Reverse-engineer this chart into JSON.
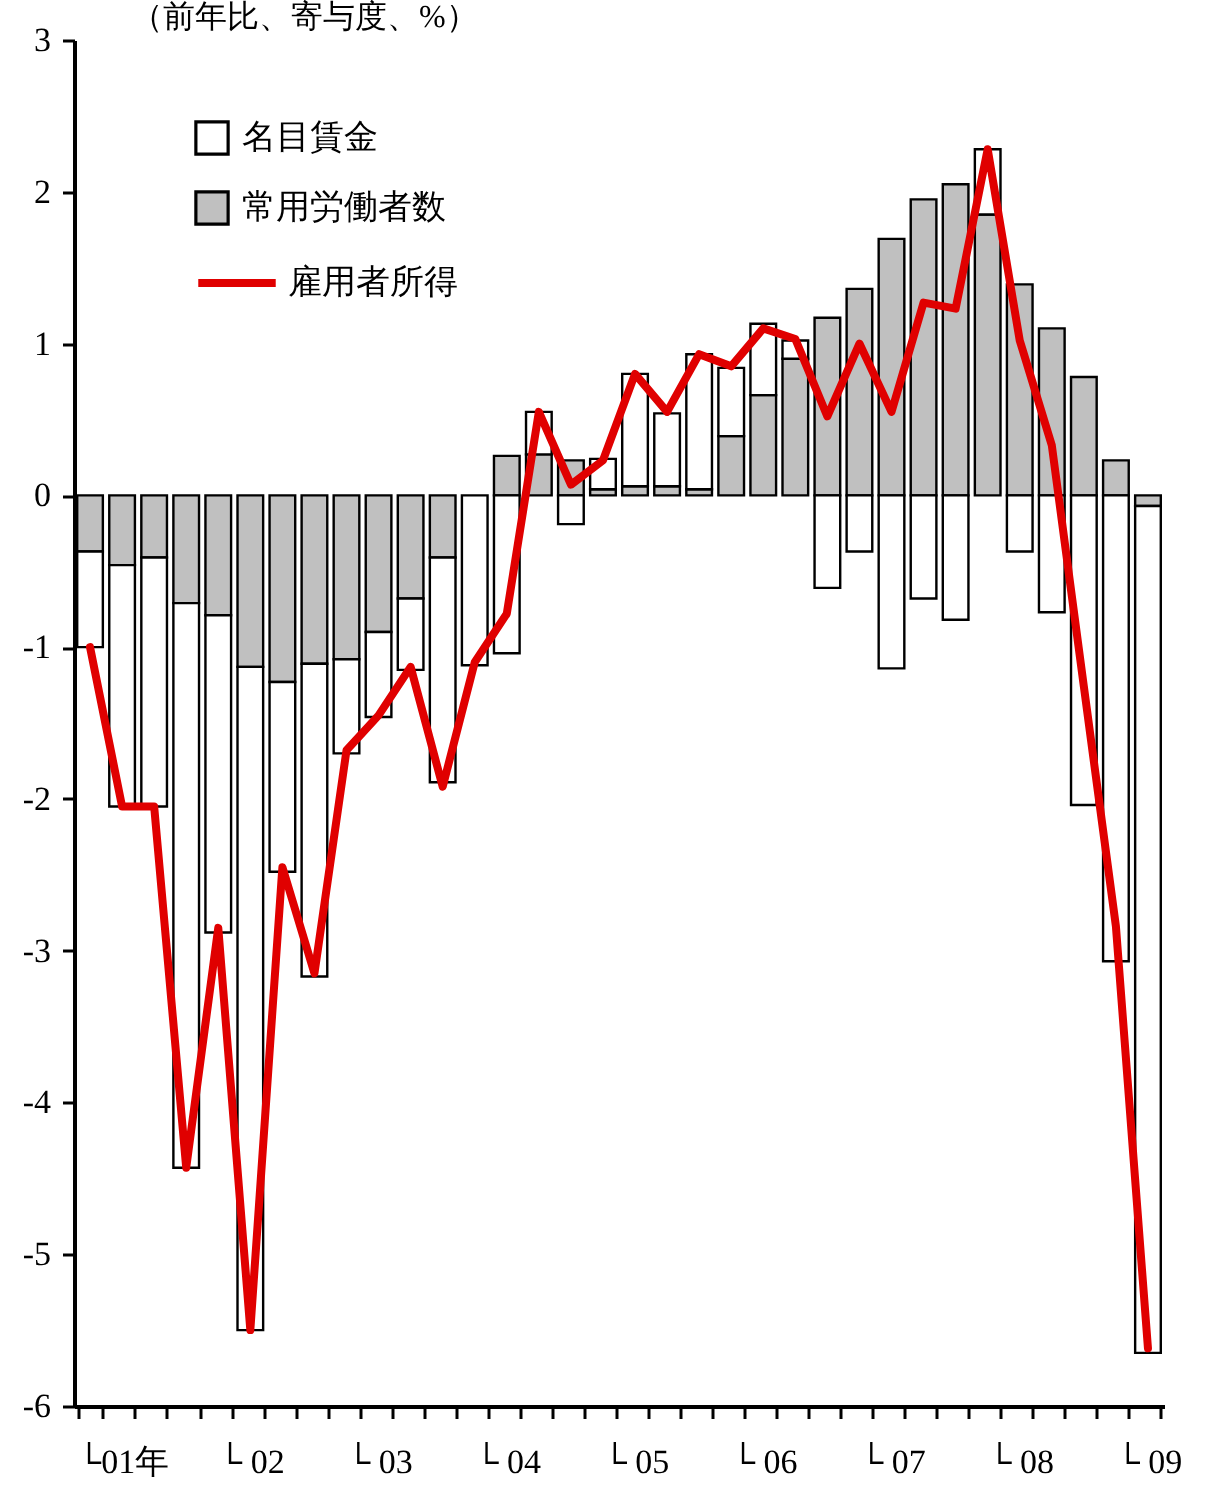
{
  "chart_data": {
    "type": "bar",
    "stacked": true,
    "ylabel": "（前年比、寄与度、%）",
    "categories": [
      null,
      "└01年",
      null,
      null,
      null,
      "└ 02",
      null,
      null,
      null,
      "└ 03",
      null,
      null,
      null,
      "└ 04",
      null,
      null,
      null,
      "└ 05",
      null,
      null,
      null,
      "└ 06",
      null,
      null,
      null,
      "└ 07",
      null,
      null,
      null,
      "└ 08",
      null,
      null,
      null,
      "└ 09"
    ],
    "series": [
      {
        "name": "常用労働者数",
        "color": "#c0c0c0",
        "values": [
          -0.37,
          -0.46,
          -0.41,
          -0.71,
          -0.79,
          -1.13,
          -1.23,
          -1.11,
          -1.08,
          -0.9,
          -0.68,
          -0.41,
          null,
          0.26,
          0.27,
          0.23,
          0.04,
          0.06,
          0.06,
          0.04,
          0.39,
          0.66,
          0.9,
          1.17,
          1.36,
          1.69,
          1.95,
          2.05,
          1.85,
          1.39,
          1.1,
          0.78,
          0.23,
          -0.07
        ]
      },
      {
        "name": "名目賃金",
        "color": "#ffffff",
        "values": [
          -0.63,
          -1.59,
          -1.64,
          -3.72,
          -2.09,
          -4.37,
          -1.25,
          -2.06,
          -0.62,
          -0.56,
          -0.47,
          -1.48,
          -1.12,
          -1.04,
          0.28,
          -0.19,
          0.2,
          0.74,
          0.48,
          0.89,
          0.45,
          0.47,
          0.12,
          -0.61,
          -0.37,
          -1.14,
          -0.68,
          -0.82,
          0.43,
          -0.37,
          -0.77,
          -2.04,
          -3.07,
          -5.58
        ]
      },
      {
        "name": "雇用者所得",
        "type": "line",
        "color": "#e00000",
        "values": [
          -1.0,
          -2.05,
          -2.05,
          -4.43,
          -2.85,
          -5.5,
          -2.45,
          -3.15,
          -1.68,
          -1.45,
          -1.13,
          -1.92,
          -1.1,
          -0.78,
          0.55,
          0.07,
          0.23,
          0.8,
          0.55,
          0.93,
          0.85,
          1.1,
          1.03,
          0.52,
          1.0,
          0.55,
          1.27,
          1.23,
          2.28,
          1.02,
          0.33,
          -1.26,
          -2.84,
          -5.62
        ]
      }
    ],
    "ylim": [
      -6,
      3
    ],
    "yticks": [
      -6,
      -5,
      -4,
      -3,
      -2,
      -1,
      0,
      1,
      2,
      3
    ],
    "legend": "top left",
    "grid": false
  }
}
